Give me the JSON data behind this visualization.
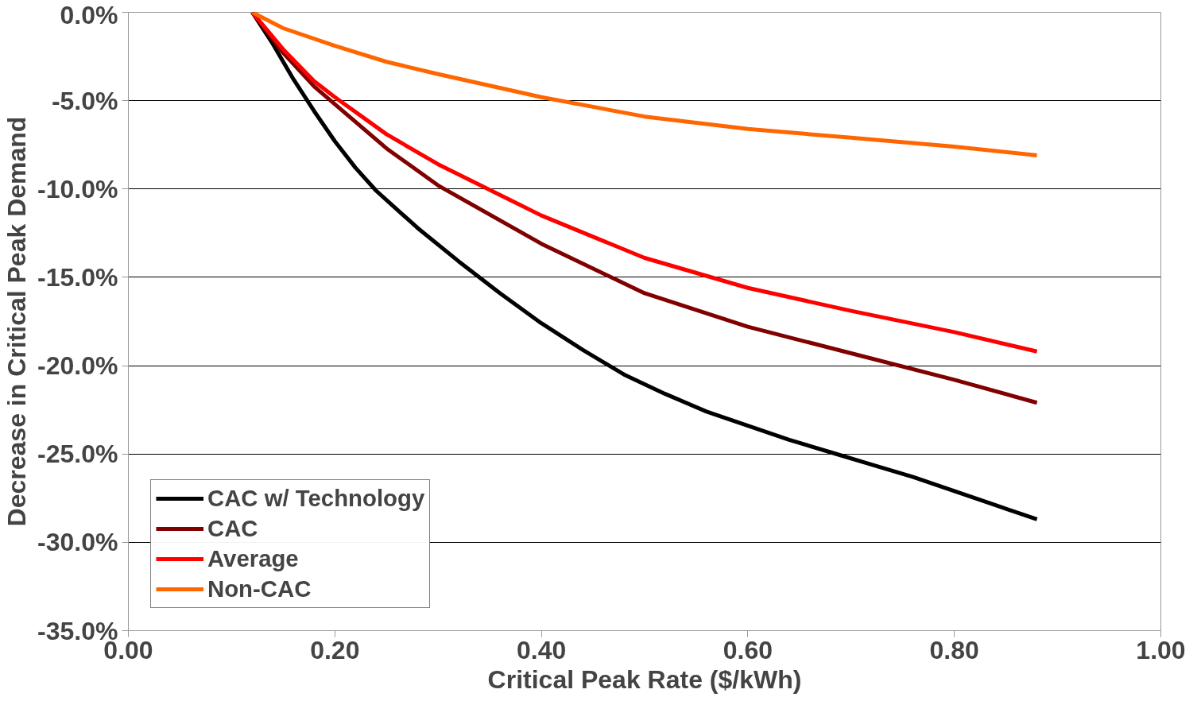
{
  "chart_data": {
    "type": "line",
    "xlabel": "Critical Peak Rate ($/kWh)",
    "ylabel": "Decrease in Critical Peak Demand",
    "xlim": [
      0,
      1
    ],
    "ylim": [
      -35,
      0
    ],
    "xticks": [
      {
        "value": 0,
        "label": "0.00"
      },
      {
        "value": 0.2,
        "label": "0.20"
      },
      {
        "value": 0.4,
        "label": "0.40"
      },
      {
        "value": 0.6,
        "label": "0.60"
      },
      {
        "value": 0.8,
        "label": "0.80"
      },
      {
        "value": 1,
        "label": "1.00"
      }
    ],
    "yticks": [
      {
        "value": 0,
        "label": "0.0%"
      },
      {
        "value": -5,
        "label": "-5.0%"
      },
      {
        "value": -10,
        "label": "-10.0%"
      },
      {
        "value": -15,
        "label": "-15.0%"
      },
      {
        "value": -20,
        "label": "-20.0%"
      },
      {
        "value": -25,
        "label": "-25.0%"
      },
      {
        "value": -30,
        "label": "-30.0%"
      },
      {
        "value": -35,
        "label": "-35.0%"
      }
    ],
    "grid": "y",
    "legend": "bottom left",
    "marker": "none",
    "line_style": "solid",
    "series": [
      {
        "name": "CAC w/ Technology",
        "color": "#000000",
        "x": [
          0.12,
          0.14,
          0.16,
          0.18,
          0.2,
          0.22,
          0.24,
          0.28,
          0.32,
          0.36,
          0.4,
          0.44,
          0.48,
          0.52,
          0.56,
          0.6,
          0.64,
          0.68,
          0.72,
          0.76,
          0.8,
          0.84,
          0.88
        ],
        "values": [
          0,
          -1.8,
          -3.8,
          -5.6,
          -7.3,
          -8.8,
          -10.1,
          -12.2,
          -14.1,
          -15.9,
          -17.6,
          -19.1,
          -20.5,
          -21.6,
          -22.6,
          -23.4,
          -24.2,
          -24.9,
          -25.6,
          -26.3,
          -27.1,
          -27.9,
          -28.7
        ]
      },
      {
        "name": "CAC",
        "color": "#800000",
        "x": [
          0.12,
          0.15,
          0.18,
          0.2,
          0.25,
          0.3,
          0.4,
          0.5,
          0.6,
          0.7,
          0.8,
          0.88
        ],
        "values": [
          0,
          -2.3,
          -4.2,
          -5.2,
          -7.7,
          -9.8,
          -13.1,
          -15.9,
          -17.8,
          -19.3,
          -20.8,
          -22.1
        ]
      },
      {
        "name": "Average",
        "color": "#ff0000",
        "x": [
          0.12,
          0.15,
          0.18,
          0.2,
          0.25,
          0.3,
          0.4,
          0.5,
          0.6,
          0.7,
          0.8,
          0.88
        ],
        "values": [
          0,
          -2.1,
          -3.9,
          -4.8,
          -6.9,
          -8.6,
          -11.5,
          -13.9,
          -15.6,
          -16.9,
          -18.1,
          -19.2
        ]
      },
      {
        "name": "Non-CAC",
        "color": "#ff6600",
        "x": [
          0.12,
          0.15,
          0.2,
          0.25,
          0.3,
          0.4,
          0.5,
          0.6,
          0.7,
          0.8,
          0.88
        ],
        "values": [
          0,
          -0.9,
          -1.9,
          -2.8,
          -3.5,
          -4.8,
          -5.9,
          -6.6,
          -7.1,
          -7.6,
          -8.1
        ]
      }
    ]
  }
}
